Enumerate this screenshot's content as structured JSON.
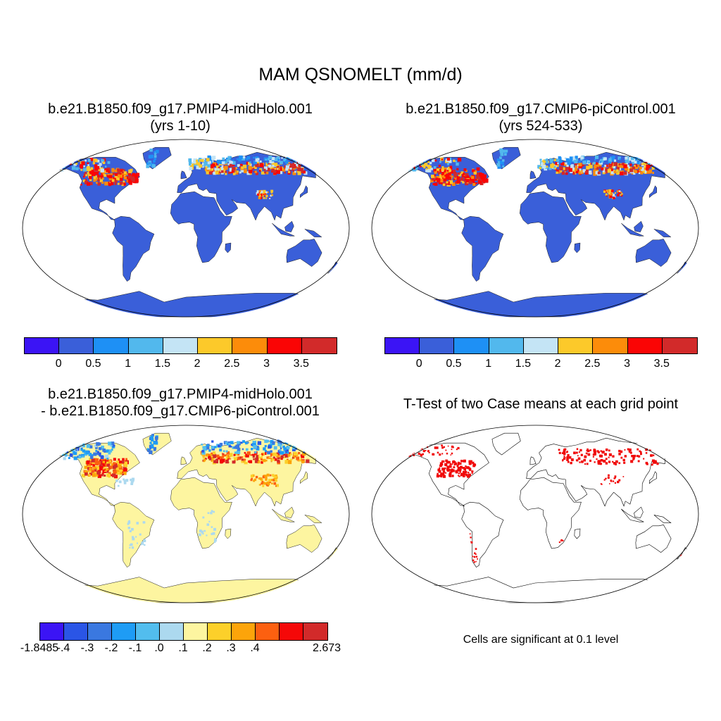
{
  "figure": {
    "title": "MAM QSNOMELT (mm/d)"
  },
  "panels": [
    {
      "title_line1": "b.e21.B1850.f09_g17.PMIP4-midHolo.001",
      "title_line2": "(yrs 1-10)",
      "map": "seasonal snowmelt field, Robinson projection"
    },
    {
      "title_line1": "b.e21.B1850.f09_g17.CMIP6-piControl.001",
      "title_line2": "(yrs 524-533)",
      "map": "seasonal snowmelt field, Robinson projection"
    },
    {
      "title_line1": "b.e21.B1850.f09_g17.PMIP4-midHolo.001",
      "title_line2": "- b.e21.B1850.f09_g17.CMIP6-piControl.001",
      "map": "difference field, Robinson projection"
    },
    {
      "title_line1": "T-Test of two Case means at each grid point",
      "note": "Cells are significant at 0.1 level",
      "map": "significance mask"
    }
  ],
  "colorbars": {
    "absolute": {
      "colors": [
        "#3b14f5",
        "#3a5fd9",
        "#1e90f5",
        "#52b8ed",
        "#c4e4f5",
        "#fcc92a",
        "#fc8c0a",
        "#fa0505",
        "#d22a2a"
      ],
      "labels": [
        "0",
        "0.5",
        "1",
        "1.5",
        "2",
        "2.5",
        "3",
        "3.5"
      ]
    },
    "difference": {
      "colors": [
        "#3b14f5",
        "#2a55e6",
        "#3a78e0",
        "#1e9cf5",
        "#52bdee",
        "#acd9ef",
        "#fdf5a0",
        "#fcd02a",
        "#fca40a",
        "#fc6010",
        "#f50808",
        "#d22a2a"
      ],
      "labels": [
        "-1.8485",
        "-.4",
        "-.3",
        "-.2",
        "-.1",
        ".0",
        ".1",
        ".2",
        ".3",
        ".4",
        "2.673"
      ]
    }
  },
  "colors": {
    "land_low": "#3a5fd9",
    "diff_base": "#fdf5a0",
    "significant": "#f00808"
  }
}
